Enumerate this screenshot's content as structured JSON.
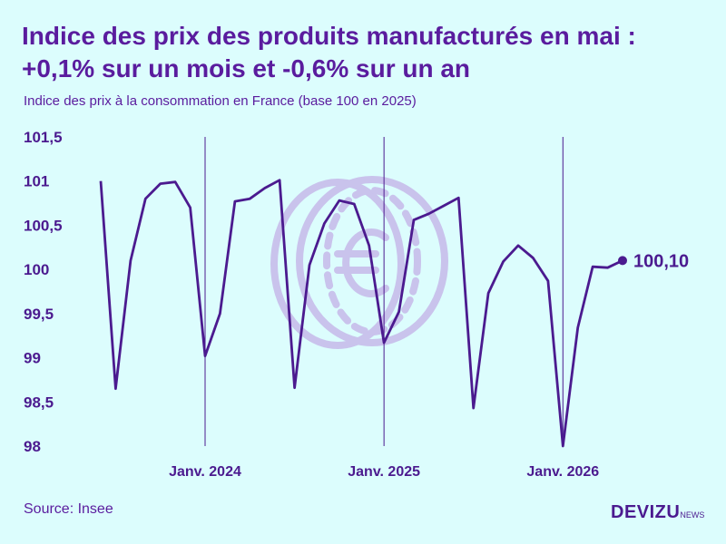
{
  "header": {
    "title": "Indice des prix des produits manufacturés en mai : +0,1% sur un mois et -0,6% sur un an",
    "subtitle": "Indice des prix à la consommation en France (base 100 en 2025)"
  },
  "footer": {
    "source": "Source: Insee",
    "brand_main": "DEVIZU",
    "brand_sub": "NEWS"
  },
  "colors": {
    "background": "#dcfdfd",
    "line": "#4b1a8f",
    "watermark": "#c9c3ec"
  },
  "watermark_icon": "euro-coin-icon",
  "chart_data": {
    "type": "line",
    "title": "Indice des prix des produits manufacturés en mai : +0,1% sur un mois et -0,6% sur un an",
    "subtitle": "Indice des prix à la consommation en France (base 100 en 2025)",
    "xlabel": "",
    "ylabel": "",
    "ylim": [
      98,
      101.5
    ],
    "yticks": [
      {
        "value": 98,
        "label": "98"
      },
      {
        "value": 98.5,
        "label": "98,5"
      },
      {
        "value": 99,
        "label": "99"
      },
      {
        "value": 99.5,
        "label": "99,5"
      },
      {
        "value": 100,
        "label": "100"
      },
      {
        "value": 100.5,
        "label": "100,5"
      },
      {
        "value": 101,
        "label": "101"
      },
      {
        "value": 101.5,
        "label": "101,5"
      }
    ],
    "x_start": "2023-06",
    "x_end": "2026-05",
    "xticks": [
      {
        "x": "2024-01",
        "label": "Janv. 2024"
      },
      {
        "x": "2025-01",
        "label": "Janv. 2025"
      },
      {
        "x": "2026-01",
        "label": "Janv. 2026"
      }
    ],
    "grid": {
      "vertical_at_xticks": true,
      "horizontal": false
    },
    "legend": "none",
    "series": [
      {
        "name": "",
        "x": [
          "2023-06",
          "2023-07",
          "2023-08",
          "2023-09",
          "2023-10",
          "2023-11",
          "2023-12",
          "2024-01",
          "2024-02",
          "2024-03",
          "2024-04",
          "2024-05",
          "2024-06",
          "2024-07",
          "2024-08",
          "2024-09",
          "2024-10",
          "2024-11",
          "2024-12",
          "2025-01",
          "2025-02",
          "2025-03",
          "2025-04",
          "2025-05",
          "2025-06",
          "2025-07",
          "2025-08",
          "2025-09",
          "2025-10",
          "2025-11",
          "2025-12",
          "2026-01",
          "2026-02",
          "2026-03",
          "2026-04",
          "2026-05"
        ],
        "values": [
          101.0,
          98.65,
          100.1,
          100.8,
          100.97,
          100.99,
          100.7,
          99.02,
          99.5,
          100.77,
          100.8,
          100.92,
          101.01,
          98.66,
          100.05,
          100.52,
          100.78,
          100.74,
          100.27,
          99.17,
          99.52,
          100.56,
          100.63,
          100.72,
          100.81,
          98.43,
          99.73,
          100.09,
          100.27,
          100.13,
          99.87,
          98.0,
          99.34,
          100.03,
          100.02,
          100.1
        ]
      }
    ],
    "end_label": "100,10"
  }
}
